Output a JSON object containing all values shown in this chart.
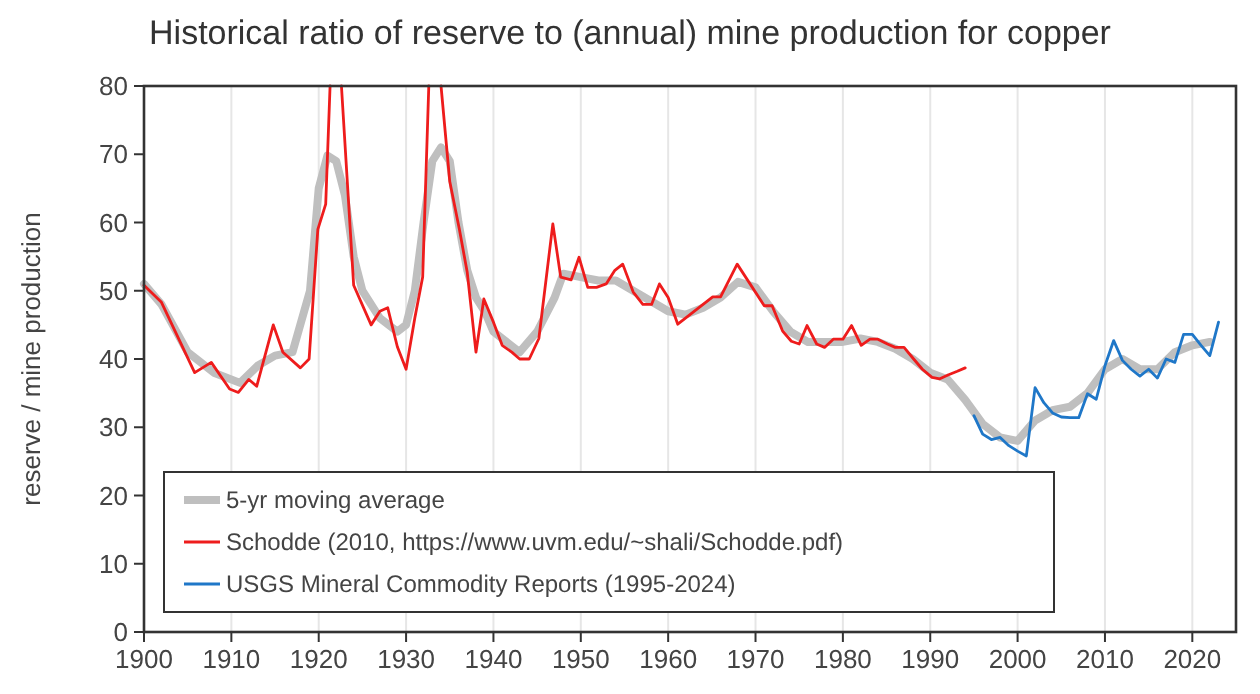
{
  "chart_data": {
    "type": "line",
    "title": "Historical ratio of reserve to (annual) mine production for copper",
    "ylabel": "reserve / mine production",
    "xlim": [
      1900,
      2025
    ],
    "xticks": [
      1900,
      1910,
      1920,
      1930,
      1940,
      1950,
      1960,
      1970,
      1980,
      1990,
      2000,
      2010,
      2020
    ],
    "ylim": [
      0,
      80
    ],
    "yticks": [
      0,
      10,
      20,
      30,
      40,
      50,
      60,
      70,
      80
    ],
    "grid": "x",
    "legend": "bottom left",
    "marker": "none",
    "line_style": "solid",
    "series": [
      {
        "name": "5-yr moving average",
        "color": "#bfbfbf",
        "x": [
          1900,
          1902,
          1905,
          1908,
          1911,
          1913,
          1915,
          1917,
          1919,
          1920,
          1921,
          1922,
          1923,
          1924,
          1925,
          1927,
          1929,
          1930,
          1931,
          1932,
          1933,
          1934,
          1935,
          1936,
          1937,
          1938,
          1939,
          1940,
          1942,
          1943,
          1945,
          1947,
          1948,
          1950,
          1952,
          1954,
          1956,
          1958,
          1960,
          1962,
          1964,
          1966,
          1968,
          1970,
          1972,
          1974,
          1976,
          1978,
          1980,
          1982,
          1984,
          1986,
          1988,
          1990,
          1992,
          1994,
          1996,
          1998,
          2000,
          2002,
          2004,
          2006,
          2008,
          2010,
          2012,
          2014,
          2016,
          2018,
          2020,
          2022
        ],
        "values": [
          51,
          48,
          41,
          38,
          36.5,
          39,
          40.5,
          41,
          50,
          65,
          69.8,
          69,
          64,
          55,
          50,
          46,
          44,
          45,
          50,
          60,
          69,
          71,
          69,
          60,
          53,
          49,
          47,
          44,
          42,
          41,
          44,
          49,
          52.5,
          52,
          51.5,
          51.5,
          50,
          48.5,
          47,
          46.5,
          47.5,
          49,
          51.3,
          50.5,
          47,
          44,
          42.5,
          42.5,
          42.5,
          43,
          42.5,
          41.5,
          40,
          38,
          37,
          34,
          30.5,
          28.5,
          28,
          31,
          32.5,
          33,
          35,
          38.5,
          40,
          38.5,
          38.5,
          41,
          42,
          42.5
        ]
      },
      {
        "name": "Schodde (2010, https://www.uvm.edu/~shali/Schodde.pdf)",
        "color": "#ee1c1c",
        "x": [
          1900,
          1902,
          1905.8,
          1907.7,
          1909.8,
          1910.8,
          1912,
          1912.9,
          1914.8,
          1915.9,
          1917.9,
          1918.9,
          1919.9,
          1920.8,
          1921.3,
          1922,
          1922.6,
          1924,
          1926,
          1927,
          1927.9,
          1929,
          1930,
          1931,
          1931.9,
          1932.6,
          1933.3,
          1934,
          1935,
          1936.1,
          1937,
          1938,
          1938.9,
          1940,
          1941,
          1942.1,
          1943,
          1944.1,
          1945.2,
          1946.8,
          1947.7,
          1948.9,
          1949.8,
          1950.8,
          1951.8,
          1952.9,
          1953.9,
          1954.8,
          1956,
          1957.1,
          1958.1,
          1959,
          1960,
          1961.1,
          1965.1,
          1966,
          1967.9,
          1971,
          1971.9,
          1973.1,
          1974.1,
          1975,
          1975.9,
          1977,
          1977.9,
          1978.9,
          1980,
          1981,
          1982.1,
          1983.1,
          1984,
          1985.1,
          1986,
          1987,
          1988.1,
          1989.1,
          1990.2,
          1991.1,
          1992.1,
          1993.1,
          1994
        ],
        "values": [
          50.8,
          48.3,
          38,
          39.5,
          35.6,
          35.1,
          37,
          36,
          45,
          41,
          38.7,
          40,
          59,
          62.7,
          80,
          null,
          80,
          50.8,
          45,
          47,
          47.5,
          41.8,
          38.5,
          46,
          52,
          80,
          null,
          80,
          66,
          59,
          52.7,
          41,
          48.8,
          45.4,
          42,
          41,
          40,
          40,
          43,
          59.8,
          52,
          51.6,
          54.9,
          50.5,
          50.5,
          51,
          53,
          53.9,
          49.8,
          48,
          48,
          51,
          49,
          45.1,
          49.1,
          49.1,
          53.9,
          47.8,
          47.8,
          44.1,
          42.6,
          42.2,
          44.9,
          42.2,
          41.7,
          42.9,
          42.9,
          44.9,
          42,
          42.9,
          42.9,
          42.2,
          41.7,
          41.7,
          40,
          38.5,
          37.3,
          37.1,
          37.7,
          38.2,
          38.7
        ]
      },
      {
        "name": "USGS Mineral Commodity Reports (1995-2024)",
        "color": "#1f77c8",
        "x": [
          1995,
          1996,
          1997,
          1998,
          1999,
          2000,
          2001,
          2002,
          2003,
          2004,
          2005,
          2006,
          2007,
          2008,
          2009,
          2010,
          2011,
          2012,
          2013,
          2014,
          2015,
          2016,
          2017,
          2018,
          2019,
          2020,
          2021,
          2022,
          2023
        ],
        "values": [
          31.7,
          29,
          28.2,
          28.5,
          27.3,
          26.5,
          25.8,
          35.8,
          33.6,
          32.1,
          31.5,
          31.4,
          31.4,
          34.9,
          34.1,
          39,
          42.7,
          39.8,
          38.5,
          37.5,
          38.5,
          37.2,
          40,
          39.5,
          43.6,
          43.6,
          42,
          40.5,
          45.4
        ]
      }
    ]
  }
}
